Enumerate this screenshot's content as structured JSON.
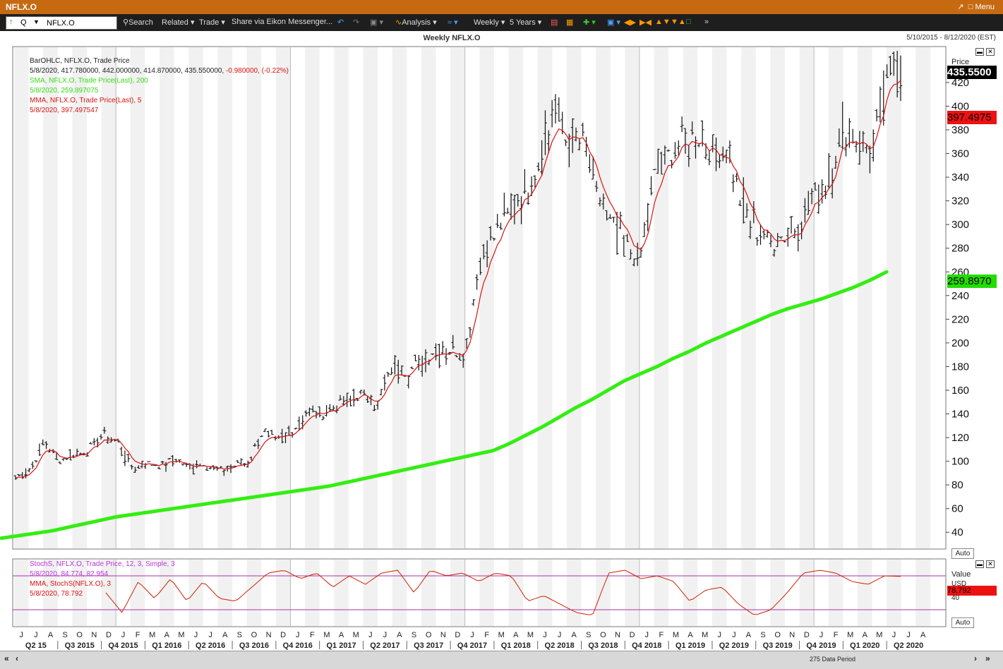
{
  "app": {
    "window_title": "NFLX.O",
    "menu_label": "Menu",
    "ric_value": "NFLX.O",
    "ric_prefix": "Q"
  },
  "toolbar": {
    "search": "Search",
    "related": "Related",
    "trade": "Trade",
    "share": "Share via Eikon Messenger...",
    "analysis": "Analysis",
    "interval": "Weekly",
    "period": "5 Years"
  },
  "header": {
    "title": "Weekly NFLX.O",
    "date_range": "5/10/2015 - 8/12/2020 (EST)"
  },
  "legend": {
    "line1": "BarOHLC, NFLX.O, Trade Price",
    "line2a": "5/8/2020, 417.780000, 442.000000, 414.870000, 435.550000, ",
    "line2b": "-0.980000, (-0.22%)",
    "sma1": "SMA, NFLX.O, Trade Price(Last), 200",
    "sma2": "5/8/2020, 259.897075",
    "mma1": "MMA, NFLX.O, Trade Price(Last), 5",
    "mma2": "5/8/2020, 397.497547"
  },
  "stoch_legend": {
    "line1": "StochS, NFLX.O, Trade Price, 12, 3, Simple, 3",
    "line2": "5/8/2020, 84.774, 82.954",
    "line3": "MMA, StochS(NFLX.O), 3",
    "line4": "5/8/2020, 78.792"
  },
  "price_axis": {
    "header": "Price",
    "last_price_label": "435.5500",
    "mma_label": "397.4975",
    "sma_label": "259.8970",
    "auto_label": "Auto"
  },
  "stoch_axis": {
    "header": "Value",
    "sub_header": "USD",
    "value_label": "78.792",
    "tick_40": "40",
    "auto_label": "Auto"
  },
  "footer": {
    "data_period": "275 Data Period"
  },
  "colors": {
    "bars": "#111111",
    "sma": "#33ee11",
    "mma": "#dd1111",
    "stoch_line": "#cc2200",
    "stoch_bands": "#aa33aa",
    "stoch_legend": "#bb33dd",
    "last_label_bg": "#000000",
    "mma_label_bg": "#ee1111",
    "sma_label_bg": "#22dd00"
  },
  "chart_data": {
    "type": "bar",
    "title": "Weekly NFLX.O",
    "date_range": "5/10/2015 - 8/12/2020",
    "ylim": [
      30,
      445
    ],
    "yticks": [
      40,
      60,
      80,
      100,
      120,
      140,
      160,
      180,
      200,
      220,
      240,
      260,
      280,
      300,
      320,
      340,
      360,
      380,
      400,
      420
    ],
    "month_labels": [
      "J",
      "J",
      "A",
      "S",
      "O",
      "N",
      "D",
      "J",
      "F",
      "M",
      "A",
      "M",
      "J",
      "J",
      "A",
      "S",
      "O",
      "N",
      "D",
      "J",
      "F",
      "M",
      "A",
      "M",
      "J",
      "J",
      "A",
      "S",
      "O",
      "N",
      "D",
      "J",
      "F",
      "M",
      "A",
      "M",
      "J",
      "J",
      "A",
      "S",
      "O",
      "N",
      "D",
      "J",
      "F",
      "M",
      "A",
      "M",
      "J",
      "J",
      "A",
      "S",
      "O",
      "N",
      "D",
      "J",
      "F",
      "M",
      "A",
      "M",
      "J",
      "J",
      "A"
    ],
    "quarter_labels": [
      "Q2 15",
      "Q3 2015",
      "Q4 2015",
      "Q1 2016",
      "Q2 2016",
      "Q3 2016",
      "Q4 2016",
      "Q1 2017",
      "Q2 2017",
      "Q3 2017",
      "Q4 2017",
      "Q1 2018",
      "Q2 2018",
      "Q3 2018",
      "Q4 2018",
      "Q1 2019",
      "Q2 2019",
      "Q3 2019",
      "Q4 2019",
      "Q1 2020",
      "Q2 2020"
    ],
    "close_monthly": [
      86,
      92,
      118,
      100,
      105,
      110,
      121,
      118,
      94,
      98,
      97,
      102,
      94,
      99,
      91,
      96,
      99,
      124,
      117,
      124,
      140,
      142,
      145,
      153,
      157,
      148,
      181,
      175,
      186,
      196,
      192,
      194,
      270,
      290,
      310,
      327,
      351,
      391,
      370,
      370,
      330,
      300,
      286,
      267,
      340,
      358,
      370,
      375,
      360,
      360,
      320,
      295,
      285,
      290,
      300,
      323,
      340,
      380,
      373,
      360,
      420,
      435
    ],
    "sma200_monthly": [
      35,
      37,
      39,
      41,
      44,
      47,
      50,
      53,
      55,
      57,
      59,
      61,
      63,
      65,
      67,
      69,
      71,
      73,
      75,
      77,
      79,
      82,
      85,
      88,
      91,
      94,
      97,
      100,
      103,
      106,
      109,
      115,
      122,
      129,
      137,
      145,
      152,
      160,
      168,
      174,
      180,
      187,
      193,
      200,
      206,
      212,
      218,
      224,
      229,
      233,
      237,
      242,
      247,
      253,
      260
    ],
    "mma5_last": 397.4975,
    "sma200_last": 259.897,
    "last_close": 435.55,
    "stochastic": {
      "k": 84.774,
      "d": 82.954,
      "mma": 78.792,
      "upper_band": 80,
      "lower_band": 20,
      "monthly": [
        50,
        15,
        70,
        40,
        75,
        35,
        70,
        40,
        35,
        60,
        85,
        90,
        75,
        85,
        60,
        80,
        65,
        85,
        90,
        50,
        90,
        80,
        85,
        70,
        85,
        80,
        35,
        45,
        30,
        15,
        10,
        85,
        90,
        75,
        80,
        70,
        35,
        55,
        60,
        30,
        10,
        20,
        50,
        85,
        90,
        85,
        70,
        65,
        80,
        79
      ]
    }
  }
}
